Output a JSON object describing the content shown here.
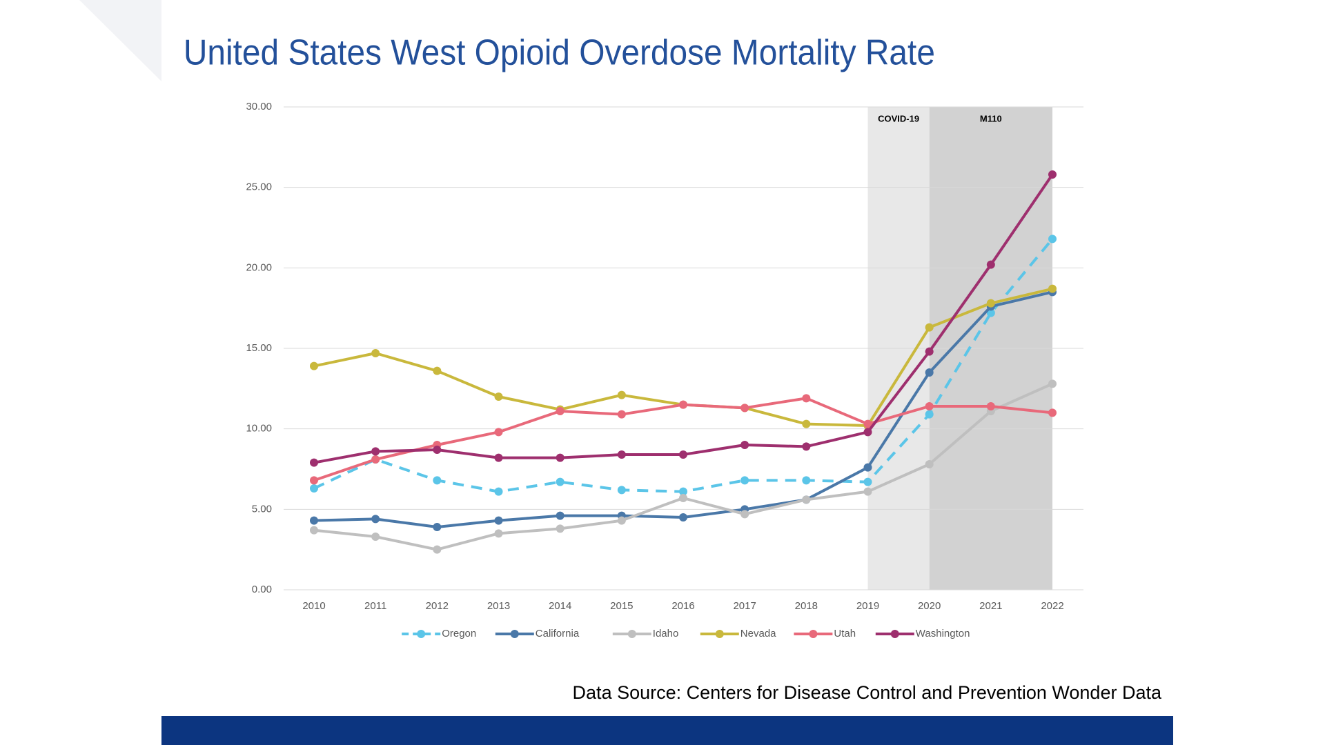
{
  "chart_data": {
    "type": "line",
    "title": "United States West Opioid Overdose Mortality Rate",
    "source": "Data Source: Centers for Disease Control and Prevention Wonder Data",
    "categories": [
      "2010",
      "2011",
      "2012",
      "2013",
      "2014",
      "2015",
      "2016",
      "2017",
      "2018",
      "2019",
      "2020",
      "2021",
      "2022"
    ],
    "ylim": [
      0,
      30
    ],
    "yticks": [
      {
        "value": 0,
        "label": "0.00"
      },
      {
        "value": 5,
        "label": "5.00"
      },
      {
        "value": 10,
        "label": "10.00"
      },
      {
        "value": 15,
        "label": "15.00"
      },
      {
        "value": 20,
        "label": "20.00"
      },
      {
        "value": 25,
        "label": "25.00"
      },
      {
        "value": 30,
        "label": "30.00"
      }
    ],
    "grid": true,
    "legend": "bottom",
    "shaded_periods": [
      {
        "label": "COVID-19",
        "from": "2019",
        "to": "2020",
        "color": "#e8e8e8"
      },
      {
        "label": "M110",
        "from": "2020",
        "to": "2022",
        "color": "#d2d2d2"
      }
    ],
    "series": [
      {
        "name": "Oregon",
        "color": "#5bc5e8",
        "dashed": true,
        "values": [
          6.3,
          8.1,
          6.8,
          6.1,
          6.7,
          6.2,
          6.1,
          6.8,
          6.8,
          6.7,
          10.9,
          17.2,
          21.8
        ]
      },
      {
        "name": "California",
        "color": "#4a78a8",
        "values": [
          4.3,
          4.4,
          3.9,
          4.3,
          4.6,
          4.6,
          4.5,
          5.0,
          5.6,
          7.6,
          13.5,
          17.6,
          18.5
        ]
      },
      {
        "name": "Idaho",
        "color": "#bfbfbf",
        "values": [
          3.7,
          3.3,
          2.5,
          3.5,
          3.8,
          4.3,
          5.7,
          4.7,
          5.6,
          6.1,
          7.8,
          11.1,
          12.8
        ]
      },
      {
        "name": "Nevada",
        "color": "#c9b83c",
        "values": [
          13.9,
          14.7,
          13.6,
          12.0,
          11.2,
          12.1,
          11.5,
          11.3,
          10.3,
          10.2,
          16.3,
          17.8,
          18.7
        ]
      },
      {
        "name": "Utah",
        "color": "#e8697a",
        "values": [
          6.8,
          8.1,
          9.0,
          9.8,
          11.1,
          10.9,
          11.5,
          11.3,
          11.9,
          10.3,
          11.4,
          11.4,
          11.0
        ]
      },
      {
        "name": "Washington",
        "color": "#9e2f6e",
        "values": [
          7.9,
          8.6,
          8.7,
          8.2,
          8.2,
          8.4,
          8.4,
          9.0,
          8.9,
          9.8,
          14.8,
          20.2,
          25.8
        ]
      }
    ]
  }
}
